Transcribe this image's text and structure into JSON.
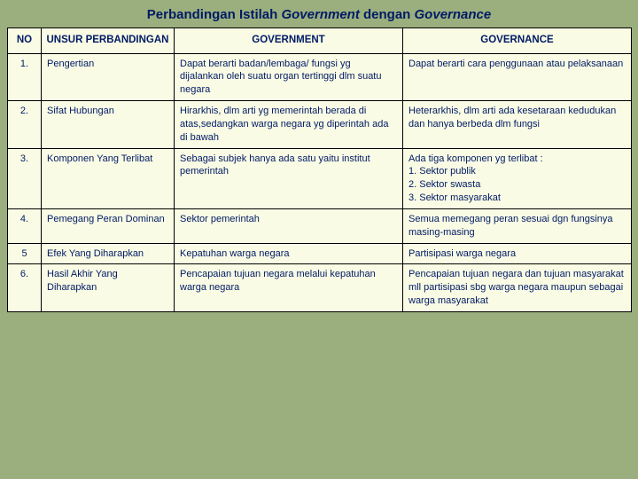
{
  "title_parts": {
    "p1": "Perbandingan Istilah ",
    "p2": "Government ",
    "p3": "dengan ",
    "p4": "Governance"
  },
  "headers": {
    "no": "NO",
    "unsur": "UNSUR PERBANDINGAN",
    "gov": "GOVERNMENT",
    "gvn": "GOVERNANCE"
  },
  "rows": [
    {
      "no": "1.",
      "unsur": "Pengertian",
      "gov": "Dapat berarti badan/lembaga/ fungsi yg dijalankan oleh suatu organ tertinggi dlm suatu negara",
      "gvn": "Dapat berarti cara penggunaan atau pelaksanaan"
    },
    {
      "no": "2.",
      "unsur": "Sifat Hubungan",
      "gov": "Hirarkhis, dlm arti yg memerintah berada di atas,sedangkan warga negara yg diperintah ada di bawah",
      "gvn": "Heterarkhis, dlm arti ada kesetaraan kedudukan dan hanya berbeda dlm fungsi"
    },
    {
      "no": "3.",
      "unsur": "Komponen Yang Terlibat",
      "gov": "Sebagai subjek hanya ada satu yaitu institut pemerintah",
      "gvn": "Ada tiga komponen yg terlibat :\n1. Sektor publik\n2. Sektor swasta\n3. Sektor masyarakat"
    },
    {
      "no": "4.",
      "unsur": "Pemegang Peran Dominan",
      "gov": "Sektor pemerintah",
      "gvn": "Semua memegang peran sesuai dgn fungsinya masing-masing"
    },
    {
      "no": "5",
      "unsur": "Efek Yang Diharapkan",
      "gov": "Kepatuhan warga negara",
      "gvn": "Partisipasi warga negara"
    },
    {
      "no": "6.",
      "unsur": "Hasil Akhir Yang Diharapkan",
      "gov": "Pencapaian tujuan negara melalui kepatuhan warga negara",
      "gvn": "Pencapaian tujuan negara dan tujuan masyarakat mll partisipasi sbg warga negara maupun sebagai warga masyarakat"
    }
  ],
  "colors": {
    "background": "#9aaf7d",
    "table_bg": "#f9fbe4",
    "text": "#001a66",
    "border": "#000000"
  }
}
